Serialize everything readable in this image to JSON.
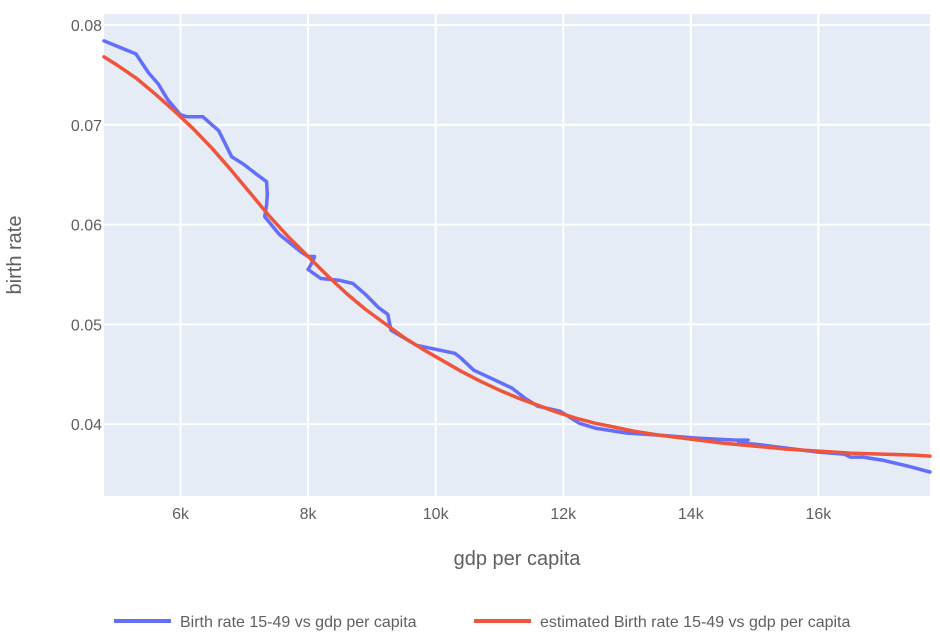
{
  "chart_data": {
    "type": "line",
    "xlabel": "gdp per capita",
    "ylabel": "birth rate",
    "xlim": [
      4800,
      17750
    ],
    "ylim": [
      0.0328,
      0.0811
    ],
    "x_ticks": [
      {
        "value": 6000,
        "label": "6k"
      },
      {
        "value": 8000,
        "label": "8k"
      },
      {
        "value": 10000,
        "label": "10k"
      },
      {
        "value": 12000,
        "label": "12k"
      },
      {
        "value": 14000,
        "label": "14k"
      },
      {
        "value": 16000,
        "label": "16k"
      }
    ],
    "y_ticks": [
      {
        "value": 0.04,
        "label": "0.04"
      },
      {
        "value": 0.05,
        "label": "0.05"
      },
      {
        "value": 0.06,
        "label": "0.06"
      },
      {
        "value": 0.07,
        "label": "0.07"
      },
      {
        "value": 0.08,
        "label": "0.08"
      }
    ],
    "grid": true,
    "legend_position": "bottom",
    "background_color": "#e5ecf6",
    "series": [
      {
        "name": "Birth rate 15-49 vs gdp per capita",
        "color": "#636efa",
        "x": [
          4800,
          5300,
          5500,
          5650,
          5800,
          6000,
          6100,
          6350,
          6600,
          6800,
          7000,
          7200,
          7350,
          7360,
          7350,
          7320,
          7550,
          7900,
          8000,
          8100,
          8080,
          8000,
          8200,
          8500,
          8700,
          8900,
          9100,
          9250,
          9300,
          9700,
          10000,
          10300,
          10400,
          10600,
          10900,
          11200,
          11400,
          11600,
          11950,
          12250,
          12500,
          13000,
          13500,
          14100,
          14700,
          14900,
          14750,
          15000,
          15500,
          16000,
          16400,
          16500,
          16700,
          17000,
          17400,
          17750
        ],
        "y": [
          0.0784,
          0.0771,
          0.0752,
          0.0741,
          0.0725,
          0.071,
          0.0708,
          0.0708,
          0.0694,
          0.0668,
          0.066,
          0.065,
          0.0643,
          0.063,
          0.062,
          0.0608,
          0.059,
          0.0572,
          0.0568,
          0.0568,
          0.0564,
          0.0555,
          0.0546,
          0.0544,
          0.0541,
          0.053,
          0.0517,
          0.051,
          0.0494,
          0.0479,
          0.0475,
          0.0471,
          0.0466,
          0.0454,
          0.0445,
          0.0436,
          0.0426,
          0.0418,
          0.0413,
          0.0401,
          0.0396,
          0.0391,
          0.0389,
          0.0386,
          0.0384,
          0.0384,
          0.0381,
          0.038,
          0.0376,
          0.0372,
          0.037,
          0.0367,
          0.0367,
          0.0364,
          0.0358,
          0.0352
        ]
      },
      {
        "name": "estimated Birth rate 15-49 vs gdp per capita",
        "color": "#ef553b",
        "x": [
          4800,
          5000,
          5300,
          5600,
          5900,
          6200,
          6500,
          6800,
          7100,
          7400,
          7700,
          8000,
          8300,
          8600,
          8900,
          9200,
          9500,
          9800,
          10100,
          10400,
          10700,
          11000,
          11300,
          11600,
          11900,
          12200,
          12500,
          12800,
          13100,
          13500,
          14000,
          14500,
          15000,
          15500,
          16000,
          16500,
          17000,
          17500,
          17750
        ],
        "y": [
          0.0768,
          0.076,
          0.0747,
          0.0731,
          0.0714,
          0.0696,
          0.0676,
          0.0654,
          0.0631,
          0.0608,
          0.0587,
          0.0568,
          0.0549,
          0.0531,
          0.0515,
          0.0501,
          0.0487,
          0.0475,
          0.0464,
          0.0453,
          0.0443,
          0.0434,
          0.0426,
          0.0419,
          0.0412,
          0.0406,
          0.0401,
          0.0397,
          0.0393,
          0.0389,
          0.0385,
          0.0381,
          0.0378,
          0.0375,
          0.0373,
          0.0371,
          0.037,
          0.0369,
          0.0368
        ]
      }
    ]
  }
}
